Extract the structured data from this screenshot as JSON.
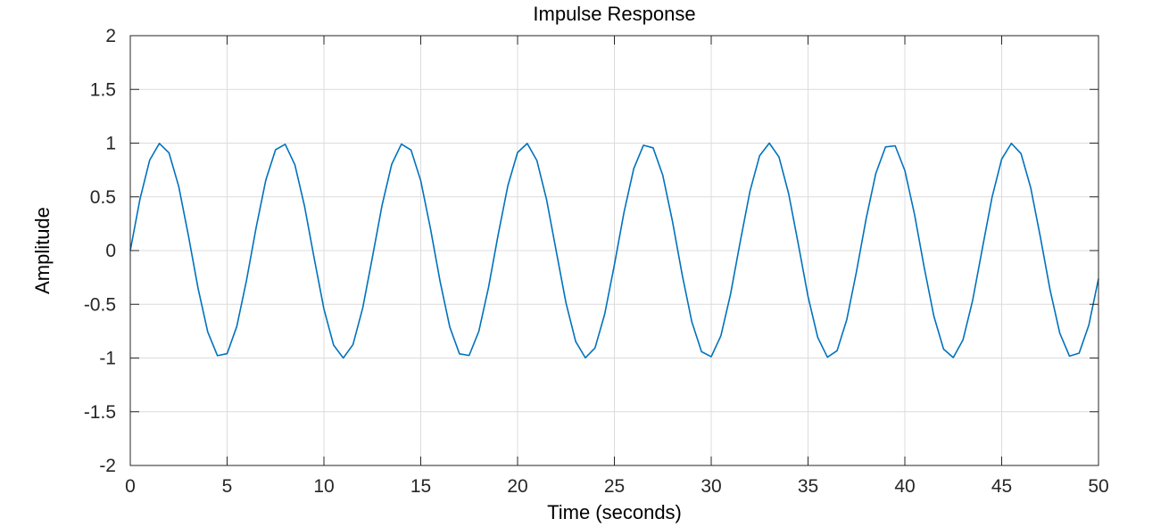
{
  "chart_data": {
    "type": "line",
    "title": "Impulse Response",
    "xlabel": "Time (seconds)",
    "ylabel": "Amplitude",
    "xlim": [
      0,
      50
    ],
    "ylim": [
      -2,
      2
    ],
    "grid": true,
    "xticks": [
      0,
      5,
      10,
      15,
      20,
      25,
      30,
      35,
      40,
      45,
      50
    ],
    "xtick_labels": [
      "0",
      "5",
      "10",
      "15",
      "20",
      "25",
      "30",
      "35",
      "40",
      "45",
      "50"
    ],
    "yticks": [
      2,
      1.5,
      1,
      0.5,
      0,
      -0.5,
      -1,
      -1.5,
      -2
    ],
    "ytick_labels": [
      "2",
      "1.5",
      "1",
      "0.5",
      "0",
      "-0.5",
      "-1",
      "-1.5",
      "-2"
    ],
    "series": [
      {
        "color": "#0072BD",
        "x": [
          0,
          0.5,
          1.0,
          1.5,
          2.0,
          2.5,
          3.0,
          3.5,
          4.0,
          4.5,
          5.0,
          5.5,
          6.0,
          6.5,
          7.0,
          7.5,
          8.0,
          8.5,
          9.0,
          9.5,
          10.0,
          10.5,
          11.0,
          11.5,
          12.0,
          12.5,
          13.0,
          13.5,
          14.0,
          14.5,
          15.0,
          15.5,
          16.0,
          16.5,
          17.0,
          17.5,
          18.0,
          18.5,
          19.0,
          19.5,
          20.0,
          20.5,
          21.0,
          21.5,
          22.0,
          22.5,
          23.0,
          23.5,
          24.0,
          24.5,
          25.0,
          25.5,
          26.0,
          26.5,
          27.0,
          27.5,
          28.0,
          28.5,
          29.0,
          29.5,
          30.0,
          30.5,
          31.0,
          31.5,
          32.0,
          32.5,
          33.0,
          33.5,
          34.0,
          34.5,
          35.0,
          35.5,
          36.0,
          36.5,
          37.0,
          37.5,
          38.0,
          38.5,
          39.0,
          39.5,
          40.0,
          40.5,
          41.0,
          41.5,
          42.0,
          42.5,
          43.0,
          43.5,
          44.0,
          44.5,
          45.0,
          45.5,
          46.0,
          46.5,
          47.0,
          47.5,
          48.0,
          48.5,
          49.0,
          49.5,
          50.0
        ],
        "y": [
          0,
          0.479,
          0.841,
          0.997,
          0.909,
          0.598,
          0.141,
          -0.351,
          -0.757,
          -0.978,
          -0.959,
          -0.706,
          -0.279,
          0.215,
          0.657,
          0.938,
          0.989,
          0.798,
          0.412,
          -0.075,
          -0.544,
          -0.88,
          -1.0,
          -0.875,
          -0.537,
          -0.066,
          0.42,
          0.803,
          0.991,
          0.935,
          0.65,
          0.206,
          -0.288,
          -0.712,
          -0.961,
          -0.976,
          -0.751,
          -0.343,
          0.15,
          0.605,
          0.913,
          0.997,
          0.837,
          0.472,
          -0.009,
          -0.487,
          -0.846,
          -0.998,
          -0.906,
          -0.591,
          -0.132,
          0.359,
          0.763,
          0.98,
          0.956,
          0.7,
          0.271,
          -0.224,
          -0.664,
          -0.941,
          -0.988,
          -0.793,
          -0.404,
          0.084,
          0.551,
          0.883,
          1.0,
          0.871,
          0.529,
          0.057,
          -0.428,
          -0.808,
          -0.992,
          -0.932,
          -0.643,
          -0.197,
          0.296,
          0.718,
          0.964,
          0.975,
          0.745,
          0.336,
          -0.158,
          -0.612,
          -0.917,
          -0.996,
          -0.832,
          -0.464,
          0.018,
          0.494,
          0.851,
          0.998,
          0.902,
          0.584,
          0.124,
          -0.367,
          -0.768,
          -0.982,
          -0.954,
          -0.694,
          -0.262
        ]
      }
    ]
  }
}
